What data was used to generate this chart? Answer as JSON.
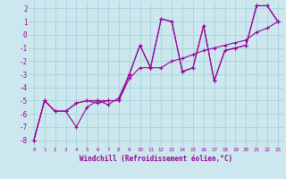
{
  "xlabel": "Windchill (Refroidissement éolien,°C)",
  "bg_color": "#cce8ee",
  "grid_color": "#aad4dd",
  "line_color": "#990099",
  "xlim": [
    -0.5,
    23.5
  ],
  "ylim": [
    -8.5,
    2.5
  ],
  "xticks": [
    0,
    1,
    2,
    3,
    4,
    5,
    6,
    7,
    8,
    9,
    10,
    11,
    12,
    13,
    14,
    15,
    16,
    17,
    18,
    19,
    20,
    21,
    22,
    23
  ],
  "yticks": [
    -8,
    -7,
    -6,
    -5,
    -4,
    -3,
    -2,
    -1,
    0,
    1,
    2
  ],
  "line1_x": [
    0,
    1,
    2,
    3,
    4,
    5,
    6,
    7,
    8,
    9,
    10,
    11,
    12,
    13,
    14,
    15,
    16,
    17,
    18,
    19,
    20,
    21,
    22,
    23
  ],
  "line1_y": [
    -8.0,
    -5.0,
    -5.8,
    -5.8,
    -7.0,
    -5.5,
    -5.0,
    -5.3,
    -4.8,
    -3.0,
    -0.8,
    -2.5,
    1.2,
    1.0,
    -2.8,
    -2.5,
    0.7,
    -3.5,
    -1.2,
    -1.0,
    -0.8,
    2.2,
    2.2,
    1.0
  ],
  "line2_x": [
    0,
    1,
    2,
    3,
    4,
    5,
    6,
    7,
    8,
    9,
    10,
    11,
    12,
    13,
    14,
    15,
    16,
    17,
    18,
    19,
    20,
    21,
    22,
    23
  ],
  "line2_y": [
    -8.0,
    -5.0,
    -5.8,
    -5.8,
    -5.2,
    -5.0,
    -5.2,
    -5.0,
    -5.0,
    -3.3,
    -2.5,
    -2.5,
    -2.5,
    -2.0,
    -1.8,
    -1.5,
    -1.2,
    -1.0,
    -0.8,
    -0.6,
    -0.4,
    0.2,
    0.5,
    1.0
  ],
  "line3_x": [
    0,
    1,
    2,
    3,
    4,
    5,
    6,
    7,
    8,
    9,
    10,
    11,
    12,
    13,
    14,
    15,
    16,
    17,
    18,
    19,
    20,
    21,
    22,
    23
  ],
  "line3_y": [
    -8.0,
    -5.0,
    -5.8,
    -5.8,
    -5.2,
    -5.0,
    -5.0,
    -5.0,
    -5.0,
    -3.0,
    -0.8,
    -2.5,
    1.2,
    1.0,
    -2.8,
    -2.5,
    0.7,
    -3.5,
    -1.2,
    -1.0,
    -0.8,
    2.2,
    2.2,
    1.0
  ]
}
